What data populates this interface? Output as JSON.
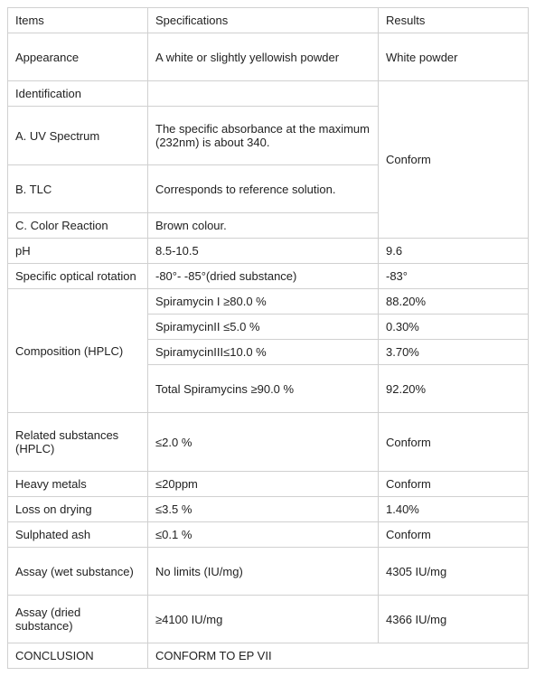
{
  "headers": {
    "items": "Items",
    "spec": "Specifications",
    "result": "Results"
  },
  "appearance": {
    "label": "Appearance",
    "spec": "A white or slightly yellowish powder",
    "result": "White powder"
  },
  "identification": {
    "label": "Identification",
    "uv": {
      "label": "A. UV Spectrum",
      "spec": "The specific absorbance at the maximum (232nm) is about 340."
    },
    "tlc": {
      "label": "B. TLC",
      "spec": "Corresponds to reference solution."
    },
    "color": {
      "label": "C. Color Reaction",
      "spec": "Brown colour."
    },
    "result": "Conform"
  },
  "ph": {
    "label": "pH",
    "spec": "8.5-10.5",
    "result": "9.6"
  },
  "sor": {
    "label": "Specific optical rotation",
    "spec": "-80°- -85°(dried substance)",
    "result": "-83°"
  },
  "composition": {
    "label": "Composition (HPLC)",
    "r1": {
      "spec": "Spiramycin I ≥80.0 %",
      "result": "88.20%"
    },
    "r2": {
      "spec": "SpiramycinII ≤5.0 %",
      "result": "0.30%"
    },
    "r3": {
      "spec": "SpiramycinIII≤10.0 %",
      "result": "3.70%"
    },
    "r4": {
      "spec": "Total Spiramycins ≥90.0 %",
      "result": "92.20%"
    }
  },
  "related": {
    "label": "Related substances (HPLC)",
    "spec": "≤2.0 %",
    "result": "Conform"
  },
  "heavy": {
    "label": "Heavy metals",
    "spec": "≤20ppm",
    "result": "Conform"
  },
  "lod": {
    "label": "Loss on drying",
    "spec": "≤3.5 %",
    "result": "1.40%"
  },
  "sulphated": {
    "label": "Sulphated ash",
    "spec": "≤0.1 %",
    "result": "Conform"
  },
  "assay_wet": {
    "label": "Assay (wet substance)",
    "spec": "No limits (IU/mg)",
    "result": "4305 IU/mg"
  },
  "assay_dried": {
    "label": "Assay (dried substance)",
    "spec": "≥4100 IU/mg",
    "result": "4366 IU/mg"
  },
  "conclusion": {
    "label": "CONCLUSION",
    "value": "CONFORM TO EP VII"
  }
}
